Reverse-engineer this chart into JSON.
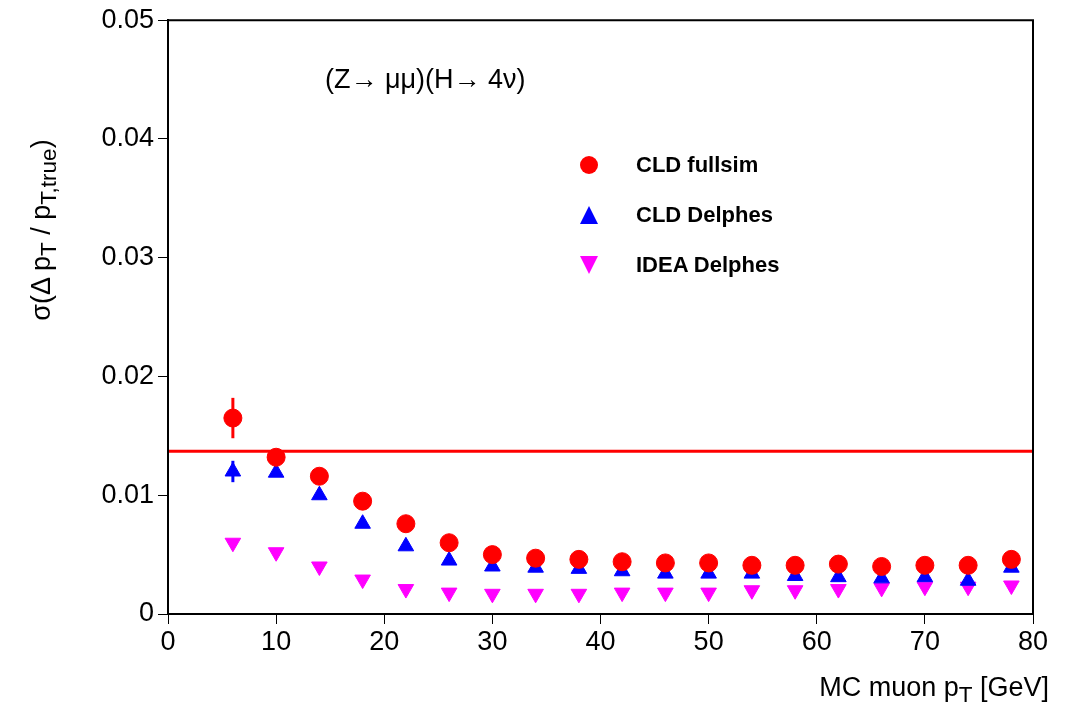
{
  "chart_data": {
    "type": "scatter",
    "xlabel": "MC muon p$_{T}$ [GeV]",
    "ylabel": "σ(Δ p$_{T}$ / p$_{T,true}$)",
    "annotations": [
      "(Z→ μμ)(H→ 4ν)"
    ],
    "x": [
      6,
      10,
      14,
      18,
      22,
      26,
      30,
      34,
      38,
      42,
      46,
      50,
      54,
      58,
      62,
      66,
      70,
      74,
      78
    ],
    "series": [
      {
        "name": "CLD fullsim",
        "color": "#ff0000",
        "marker": "circle",
        "values": [
          0.0165,
          0.0132,
          0.0116,
          0.0095,
          0.0076,
          0.006,
          0.005,
          0.0047,
          0.0046,
          0.0044,
          0.0043,
          0.0043,
          0.0041,
          0.0041,
          0.0042,
          0.004,
          0.0041,
          0.0041,
          0.0046
        ],
        "errors": [
          0.0017,
          null,
          null,
          null,
          null,
          null,
          null,
          null,
          null,
          null,
          null,
          null,
          null,
          null,
          null,
          null,
          null,
          null,
          null
        ]
      },
      {
        "name": "CLD Delphes",
        "color": "#0000ff",
        "marker": "triangle",
        "values": [
          0.012,
          0.0119,
          0.01,
          0.0076,
          0.0057,
          0.0045,
          0.004,
          0.0039,
          0.0038,
          0.0036,
          0.0034,
          0.0034,
          0.0034,
          0.0032,
          0.0031,
          0.003,
          0.0031,
          0.0028,
          0.0039
        ],
        "errors": [
          0.0009,
          null,
          null,
          null,
          null,
          null,
          null,
          null,
          null,
          null,
          null,
          null,
          null,
          null,
          null,
          null,
          null,
          null,
          null
        ]
      },
      {
        "name": "IDEA Delphes",
        "color": "#ff00ff",
        "marker": "triangle-down",
        "values": [
          0.006,
          0.0052,
          0.004,
          0.0029,
          0.0021,
          0.0018,
          0.0017,
          0.0017,
          0.0017,
          0.0018,
          0.0018,
          0.0018,
          0.002,
          0.002,
          0.0021,
          0.0022,
          0.0023,
          0.0023,
          0.0024
        ]
      }
    ],
    "xlim": [
      0,
      80
    ],
    "xticks": [
      0,
      10,
      20,
      30,
      40,
      50,
      60,
      70,
      80
    ],
    "ylim": [
      0,
      0.05
    ],
    "yticks": [
      0,
      0.01,
      0.02,
      0.03,
      0.04,
      0.05
    ],
    "ref_lines": [
      {
        "axis": "y",
        "value": 0.0137,
        "color": "#ff0000"
      }
    ],
    "legend": "top right",
    "grid": false
  }
}
